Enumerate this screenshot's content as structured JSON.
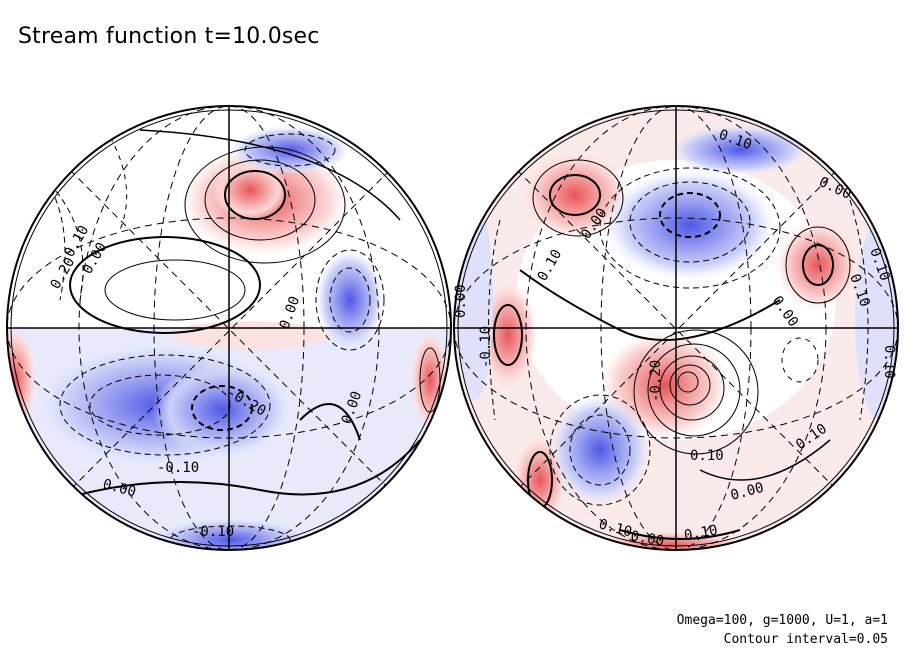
{
  "title": "Stream function t=10.0sec",
  "footer": {
    "params": "Omega=100, g=1000, U=1, a=1",
    "interval": "Contour interval=0.05"
  },
  "colors": {
    "positive": "#e8555a",
    "negative": "#5a62e6",
    "outline": "#000000"
  },
  "hemispheres": [
    {
      "name": "left-hemisphere",
      "labels": [
        "0.20",
        "0.10",
        "0.00",
        "0.00",
        "0.00",
        "-0.20",
        "-0.10",
        "0.00",
        "-0.10"
      ]
    },
    {
      "name": "right-hemisphere",
      "labels": [
        "0.10",
        "0.00",
        "0.00",
        "0.10",
        "0.00",
        "0.10",
        "0.10",
        "0.00",
        "-0.10",
        "0.10",
        "-0.20",
        "0.10",
        "0.10",
        "0.00",
        "0.10",
        "0.00",
        "0.10"
      ]
    }
  ]
}
